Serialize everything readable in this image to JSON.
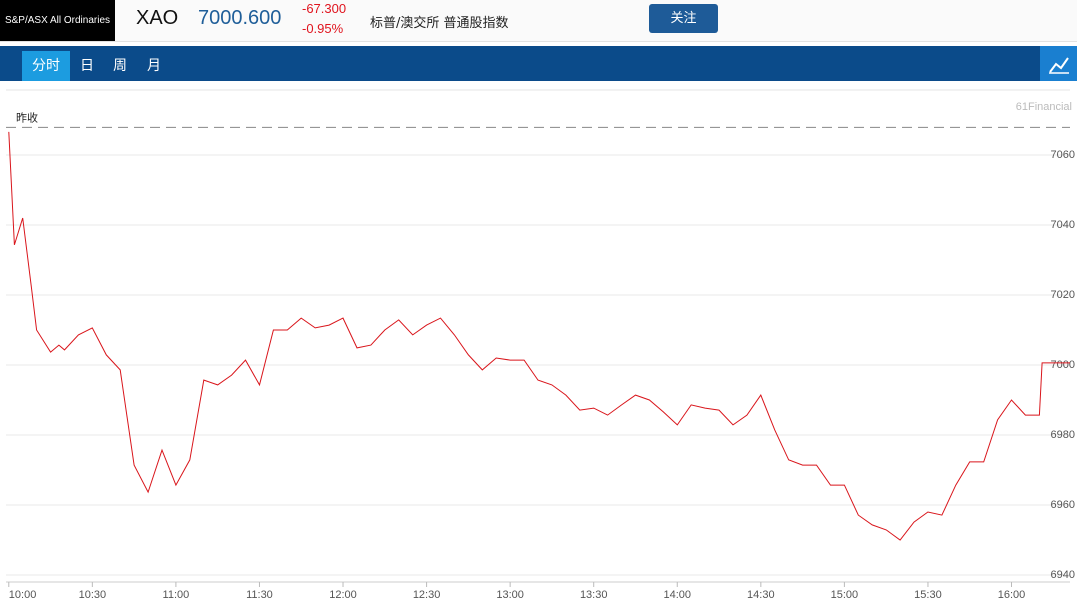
{
  "header": {
    "logo": "S&P/ASX All Ordinaries",
    "symbol": "XAO",
    "price": "7000.600",
    "change": "-67.300",
    "change_pct": "-0.95%",
    "name": "标普/澳交所 普通股指数",
    "follow_button": "关注"
  },
  "tabs": [
    "分时",
    "日",
    "周",
    "月"
  ],
  "watermark": "61Financial",
  "chart_data": {
    "type": "line",
    "color": "#d9151b",
    "grid": true,
    "x": [
      600,
      602,
      605,
      608,
      610,
      615,
      618,
      620,
      625,
      630,
      635,
      640,
      645,
      650,
      655,
      660,
      665,
      670,
      675,
      680,
      685,
      690,
      695,
      700,
      705,
      710,
      715,
      720,
      725,
      730,
      735,
      740,
      745,
      750,
      755,
      760,
      765,
      770,
      775,
      780,
      785,
      790,
      795,
      800,
      805,
      810,
      815,
      820,
      825,
      830,
      835,
      840,
      845,
      850,
      855,
      860,
      865,
      870,
      875,
      880,
      885,
      890,
      895,
      900,
      905,
      910,
      915,
      920,
      925,
      930,
      935,
      940,
      945,
      950,
      955,
      960,
      965,
      970,
      971,
      981
    ],
    "values": [
      7066.6,
      7034.3,
      7042,
      7022.9,
      7010,
      7003.7,
      7005.7,
      7004.3,
      7008.6,
      7010.6,
      7002.9,
      6998.6,
      6971.4,
      6963.7,
      6975.7,
      6965.7,
      6972.9,
      6995.7,
      6994.3,
      6997.1,
      7001.4,
      6994.3,
      7010,
      7010,
      7013.4,
      7010.6,
      7011.4,
      7013.4,
      7004.9,
      7005.7,
      7010,
      7012.9,
      7008.6,
      7011.4,
      7013.4,
      7008.6,
      7002.9,
      6998.6,
      7002,
      7001.4,
      7001.4,
      6995.7,
      6994.3,
      6991.4,
      6987.1,
      6987.7,
      6985.7,
      6988.6,
      6991.4,
      6990,
      6986.6,
      6982.9,
      6988.6,
      6987.7,
      6987.1,
      6982.9,
      6985.7,
      6991.4,
      6981.4,
      6972.9,
      6971.4,
      6971.4,
      6965.7,
      6965.7,
      6957.1,
      6954.3,
      6952.9,
      6950,
      6955.1,
      6958,
      6957.1,
      6965.7,
      6972.3,
      6972.3,
      6984.3,
      6990,
      6985.7,
      6985.7,
      7000.6,
      7000.6
    ],
    "xlim": [
      599,
      981
    ],
    "xticks": [
      {
        "value": 600,
        "label": "10:00"
      },
      {
        "value": 630,
        "label": "10:30"
      },
      {
        "value": 660,
        "label": "11:00"
      },
      {
        "value": 690,
        "label": "11:30"
      },
      {
        "value": 720,
        "label": "12:00"
      },
      {
        "value": 750,
        "label": "12:30"
      },
      {
        "value": 780,
        "label": "13:00"
      },
      {
        "value": 810,
        "label": "13:30"
      },
      {
        "value": 840,
        "label": "14:00"
      },
      {
        "value": 870,
        "label": "14:30"
      },
      {
        "value": 900,
        "label": "15:00"
      },
      {
        "value": 930,
        "label": "15:30"
      },
      {
        "value": 960,
        "label": "16:00"
      }
    ],
    "ylim": [
      6938,
      7078
    ],
    "yticks": [
      6940,
      6960,
      6980,
      7000,
      7020,
      7040,
      7060
    ],
    "reference_line": {
      "label": "昨收",
      "value": 7067.9
    }
  }
}
